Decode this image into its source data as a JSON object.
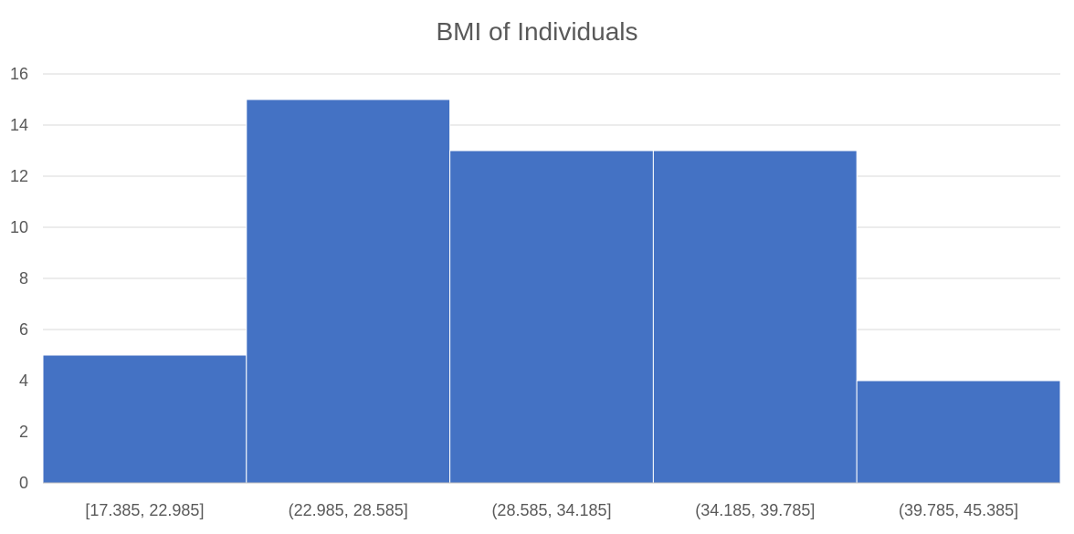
{
  "chart_data": {
    "type": "bar",
    "title": "BMI of Individuals",
    "categories": [
      "[17.385, 22.985]",
      "(22.985, 28.585]",
      "(28.585, 34.185]",
      "(34.185, 39.785]",
      "(39.785, 45.385]"
    ],
    "values": [
      5,
      15,
      13,
      13,
      4
    ],
    "xlabel": "",
    "ylabel": "",
    "ylim": [
      0,
      16
    ],
    "yticks": [
      0,
      2,
      4,
      6,
      8,
      10,
      12,
      14,
      16
    ],
    "grid": true,
    "legend": "none",
    "bar_color": "#4472C4",
    "grid_color": "#D9D9D9",
    "text_color": "#595959"
  }
}
